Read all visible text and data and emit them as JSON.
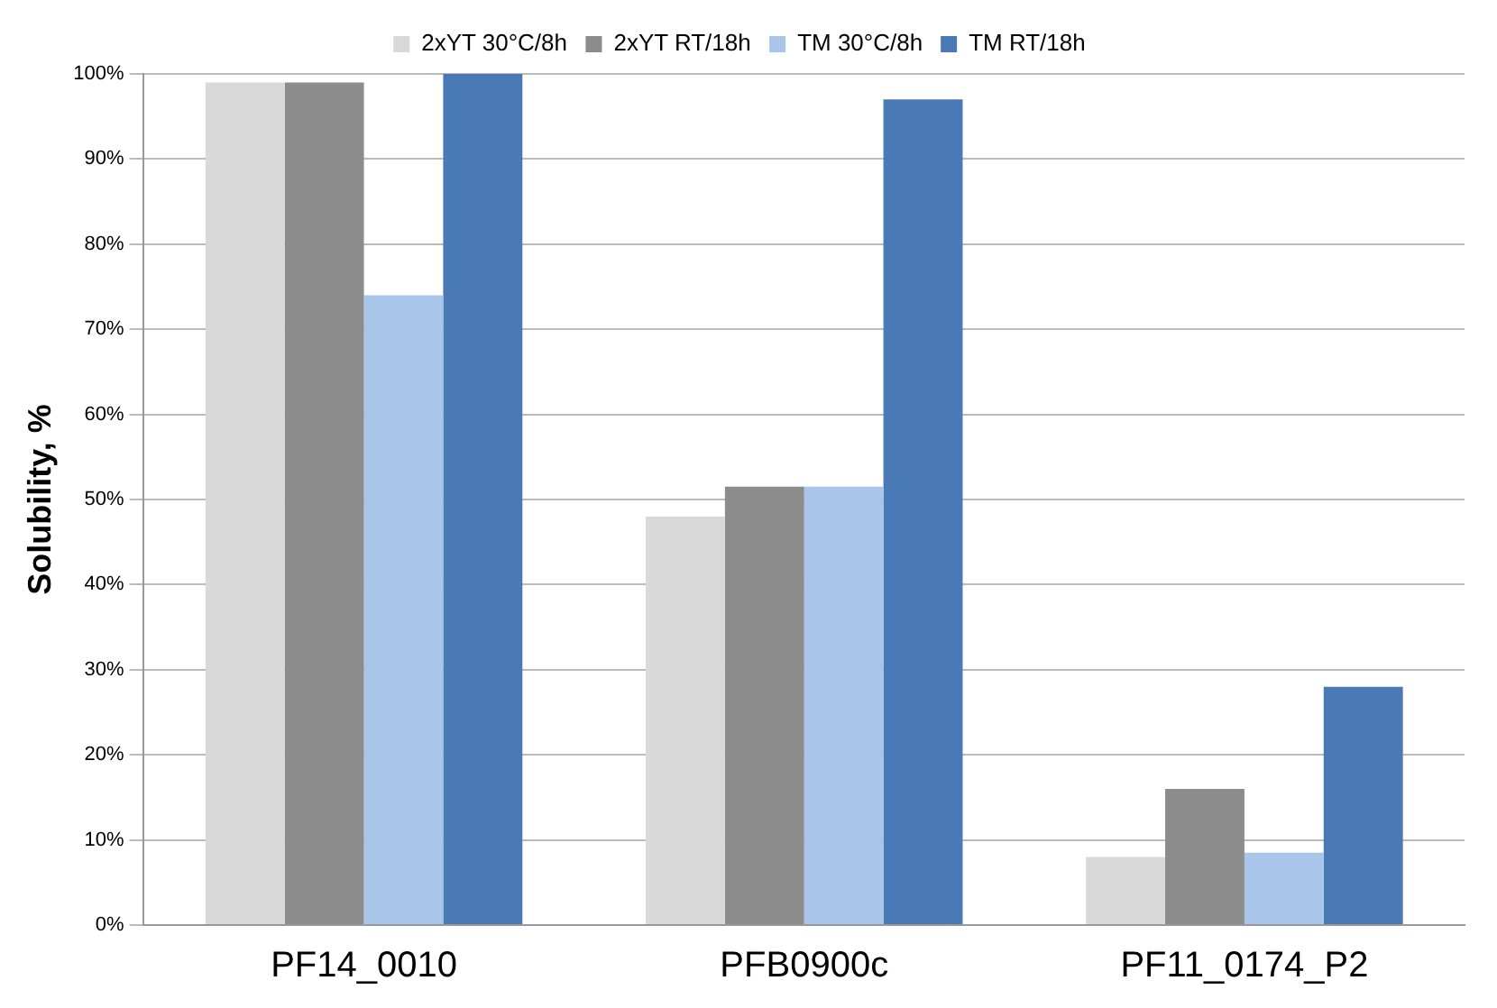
{
  "chart_data": {
    "type": "bar",
    "ylabel": "Solubility, %",
    "categories": [
      "PF14_0010",
      "PFB0900c",
      "PF11_0174_P2"
    ],
    "series": [
      {
        "name": "2xYT 30°C/8h",
        "color": "#d9d9d9",
        "values": [
          99,
          48,
          8
        ]
      },
      {
        "name": "2xYT RT/18h",
        "color": "#8c8c8c",
        "values": [
          99,
          51.5,
          16
        ]
      },
      {
        "name": "TM 30°C/8h",
        "color": "#a9c6ea",
        "values": [
          74,
          51.5,
          8.5
        ]
      },
      {
        "name": "TM RT/18h",
        "color": "#4a7ab5",
        "values": [
          100,
          97,
          28
        ]
      }
    ],
    "ylim": [
      0,
      100
    ],
    "yticks": [
      {
        "value": 0,
        "label": "0%"
      },
      {
        "value": 10,
        "label": "10%"
      },
      {
        "value": 20,
        "label": "20%"
      },
      {
        "value": 30,
        "label": "30%"
      },
      {
        "value": 40,
        "label": "40%"
      },
      {
        "value": 50,
        "label": "50%"
      },
      {
        "value": 60,
        "label": "60%"
      },
      {
        "value": 70,
        "label": "70%"
      },
      {
        "value": 80,
        "label": "80%"
      },
      {
        "value": 90,
        "label": "90%"
      },
      {
        "value": 100,
        "label": "100%"
      }
    ],
    "grid": "y",
    "legend": "top"
  }
}
